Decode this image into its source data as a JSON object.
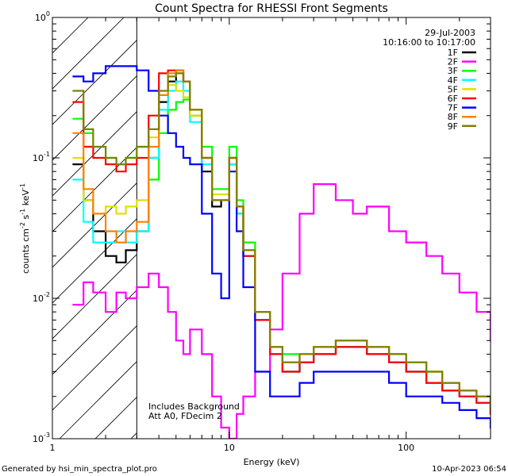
{
  "chart_data": {
    "type": "line",
    "title": "Count Spectra for RHESSI Front Segments",
    "xlabel": "Energy (keV)",
    "ylabel_parts": {
      "a": "counts cm",
      "b": "-2",
      "c": " s",
      "d": "-1",
      "e": " keV",
      "f": "-1"
    },
    "x_scale": "log",
    "y_scale": "log",
    "xlim": [
      1,
      300
    ],
    "ylim": [
      0.001,
      1
    ],
    "x_tick_labels": [
      {
        "v": 1,
        "label": "1"
      },
      {
        "v": 10,
        "label": "10"
      },
      {
        "v": 100,
        "label": "100"
      }
    ],
    "y_tick_labels": [
      {
        "v": 1,
        "base": "10",
        "exp": "0"
      },
      {
        "v": 0.1,
        "base": "10",
        "exp": "-1"
      },
      {
        "v": 0.01,
        "base": "10",
        "exp": "-2"
      },
      {
        "v": 0.001,
        "base": "10",
        "exp": "-3"
      }
    ],
    "hatched_region_xmax": 3,
    "info": {
      "date": "29-Jul-2003",
      "time_range": "10:16:00 to 10:17:00"
    },
    "annotations": [
      "Includes Background",
      "Att A0, FDecim 2"
    ],
    "footer_left": "Generated by hsi_min_spectra_plot.pro",
    "footer_right": "10-Apr-2023 06:54",
    "series": [
      {
        "name": "1F",
        "color": "#000000",
        "energy": [
          1.3,
          1.5,
          1.7,
          2.0,
          2.3,
          2.6,
          3.0,
          3.5,
          4.0,
          4.5,
          5.0,
          5.5,
          6.0,
          7.0,
          8.0,
          9.0,
          10.0,
          11.0,
          12.0,
          14.0,
          17.0,
          20.0,
          25.0,
          30.0,
          40.0,
          50.0,
          60.0,
          80.0,
          100.0,
          130.0,
          160.0,
          200.0,
          250.0,
          300.0
        ],
        "counts": [
          0.09,
          0.05,
          0.03,
          0.02,
          0.018,
          0.022,
          0.03,
          0.1,
          0.25,
          0.35,
          0.42,
          0.35,
          0.2,
          0.08,
          0.045,
          0.05,
          0.09,
          0.04,
          0.02,
          0.007,
          0.004,
          0.003,
          0.0035,
          0.004,
          0.0045,
          0.0045,
          0.004,
          0.0035,
          0.003,
          0.0025,
          0.0022,
          0.002,
          0.0018,
          0.0015
        ]
      },
      {
        "name": "2F",
        "color": "#ff00ff",
        "energy": [
          1.3,
          1.5,
          1.7,
          2.0,
          2.3,
          2.6,
          3.0,
          3.5,
          4.0,
          4.5,
          5.0,
          5.5,
          6.0,
          7.0,
          8.0,
          9.0,
          10.0,
          11.0,
          12.0,
          14.0,
          17.0,
          20.0,
          25.0,
          30.0,
          40.0,
          50.0,
          60.0,
          80.0,
          100.0,
          130.0,
          160.0,
          200.0,
          250.0,
          300.0
        ],
        "counts": [
          0.009,
          0.013,
          0.011,
          0.008,
          0.011,
          0.01,
          0.012,
          0.015,
          0.012,
          0.008,
          0.005,
          0.004,
          0.006,
          0.004,
          0.002,
          0.0012,
          0.001,
          0.0015,
          0.002,
          0.003,
          0.006,
          0.015,
          0.04,
          0.065,
          0.05,
          0.04,
          0.045,
          0.03,
          0.025,
          0.02,
          0.015,
          0.011,
          0.008,
          0.005
        ]
      },
      {
        "name": "3F",
        "color": "#00ff00",
        "energy": [
          1.3,
          1.5,
          1.7,
          2.0,
          2.3,
          2.6,
          3.0,
          3.5,
          4.0,
          4.5,
          5.0,
          5.5,
          6.0,
          7.0,
          8.0,
          9.0,
          10.0,
          11.0,
          12.0,
          14.0,
          17.0,
          20.0,
          25.0,
          30.0,
          40.0,
          50.0,
          60.0,
          80.0,
          100.0,
          130.0,
          160.0,
          200.0,
          250.0,
          300.0
        ],
        "counts": [
          0.19,
          0.15,
          0.12,
          0.1,
          0.09,
          0.1,
          0.12,
          0.07,
          0.15,
          0.22,
          0.25,
          0.26,
          0.2,
          0.12,
          0.06,
          0.06,
          0.12,
          0.05,
          0.025,
          0.008,
          0.0045,
          0.004,
          0.004,
          0.0045,
          0.005,
          0.005,
          0.0045,
          0.004,
          0.0035,
          0.003,
          0.0025,
          0.0022,
          0.002,
          0.0017
        ]
      },
      {
        "name": "4F",
        "color": "#00ffff",
        "energy": [
          1.3,
          1.5,
          1.7,
          2.0,
          2.3,
          2.6,
          3.0,
          3.5,
          4.0,
          4.5,
          5.0,
          5.5,
          6.0,
          7.0,
          8.0,
          9.0,
          10.0,
          11.0,
          12.0,
          14.0,
          17.0,
          20.0,
          25.0,
          30.0,
          40.0,
          50.0,
          60.0,
          80.0,
          100.0,
          130.0,
          160.0,
          200.0,
          250.0,
          300.0
        ],
        "counts": [
          0.07,
          0.035,
          0.025,
          0.025,
          0.03,
          0.025,
          0.03,
          0.1,
          0.22,
          0.3,
          0.35,
          0.3,
          0.18,
          0.09,
          0.05,
          0.05,
          0.09,
          0.04,
          0.02,
          0.007,
          0.004,
          0.003,
          0.0035,
          0.004,
          0.0045,
          0.0045,
          0.004,
          0.0035,
          0.003,
          0.0025,
          0.0022,
          0.002,
          0.0018,
          0.0015
        ]
      },
      {
        "name": "5F",
        "color": "#e0e000",
        "energy": [
          1.3,
          1.5,
          1.7,
          2.0,
          2.3,
          2.6,
          3.0,
          3.5,
          4.0,
          4.5,
          5.0,
          5.5,
          6.0,
          7.0,
          8.0,
          9.0,
          10.0,
          11.0,
          12.0,
          14.0,
          17.0,
          20.0,
          25.0,
          30.0,
          40.0,
          50.0,
          60.0,
          80.0,
          100.0,
          130.0,
          160.0,
          200.0,
          250.0,
          300.0
        ],
        "counts": [
          0.1,
          0.05,
          0.04,
          0.045,
          0.04,
          0.045,
          0.05,
          0.14,
          0.28,
          0.33,
          0.3,
          0.27,
          0.2,
          0.1,
          0.055,
          0.055,
          0.1,
          0.045,
          0.022,
          0.008,
          0.0045,
          0.0035,
          0.004,
          0.0045,
          0.005,
          0.005,
          0.0045,
          0.004,
          0.0035,
          0.003,
          0.0025,
          0.0022,
          0.002,
          0.0017
        ]
      },
      {
        "name": "6F",
        "color": "#ff0000",
        "energy": [
          1.3,
          1.5,
          1.7,
          2.0,
          2.3,
          2.6,
          3.0,
          3.5,
          4.0,
          4.5,
          5.0,
          5.5,
          6.0,
          7.0,
          8.0,
          9.0,
          10.0,
          11.0,
          12.0,
          14.0,
          17.0,
          20.0,
          25.0,
          30.0,
          40.0,
          50.0,
          60.0,
          80.0,
          100.0,
          130.0,
          160.0,
          200.0,
          250.0,
          300.0
        ],
        "counts": [
          0.25,
          0.12,
          0.1,
          0.09,
          0.08,
          0.09,
          0.1,
          0.2,
          0.4,
          0.42,
          0.4,
          0.35,
          0.22,
          0.1,
          0.05,
          0.05,
          0.1,
          0.045,
          0.02,
          0.007,
          0.004,
          0.003,
          0.0035,
          0.004,
          0.0045,
          0.0045,
          0.004,
          0.0035,
          0.003,
          0.0025,
          0.0022,
          0.002,
          0.0018,
          0.0015
        ]
      },
      {
        "name": "7F",
        "color": "#0000ff",
        "energy": [
          1.3,
          1.5,
          1.7,
          2.0,
          2.3,
          2.6,
          3.0,
          3.5,
          4.0,
          4.5,
          5.0,
          5.5,
          6.0,
          7.0,
          8.0,
          9.0,
          10.0,
          11.0,
          12.0,
          14.0,
          17.0,
          20.0,
          25.0,
          30.0,
          40.0,
          50.0,
          60.0,
          80.0,
          100.0,
          130.0,
          160.0,
          200.0,
          250.0,
          300.0
        ],
        "counts": [
          0.38,
          0.35,
          0.4,
          0.45,
          0.45,
          0.45,
          0.42,
          0.3,
          0.2,
          0.15,
          0.12,
          0.1,
          0.09,
          0.04,
          0.015,
          0.01,
          0.08,
          0.03,
          0.012,
          0.003,
          0.002,
          0.002,
          0.0025,
          0.003,
          0.003,
          0.003,
          0.003,
          0.0025,
          0.002,
          0.002,
          0.0018,
          0.0016,
          0.0014,
          0.0012
        ]
      },
      {
        "name": "8F",
        "color": "#ff8000",
        "energy": [
          1.3,
          1.5,
          1.7,
          2.0,
          2.3,
          2.6,
          3.0,
          3.5,
          4.0,
          4.5,
          5.0,
          5.5,
          6.0,
          7.0,
          8.0,
          9.0,
          10.0,
          11.0,
          12.0,
          14.0,
          17.0,
          20.0,
          25.0,
          30.0,
          40.0,
          50.0,
          60.0,
          80.0,
          100.0,
          130.0,
          160.0,
          200.0,
          250.0,
          300.0
        ],
        "counts": [
          0.15,
          0.06,
          0.04,
          0.03,
          0.025,
          0.03,
          0.035,
          0.12,
          0.28,
          0.4,
          0.42,
          0.35,
          0.22,
          0.1,
          0.05,
          0.05,
          0.1,
          0.045,
          0.022,
          0.008,
          0.0045,
          0.0035,
          0.004,
          0.0045,
          0.005,
          0.005,
          0.0045,
          0.004,
          0.0035,
          0.003,
          0.0025,
          0.0022,
          0.002,
          0.0017
        ]
      },
      {
        "name": "9F",
        "color": "#808000",
        "energy": [
          1.3,
          1.5,
          1.7,
          2.0,
          2.3,
          2.6,
          3.0,
          3.5,
          4.0,
          4.5,
          5.0,
          5.5,
          6.0,
          7.0,
          8.0,
          9.0,
          10.0,
          11.0,
          12.0,
          14.0,
          17.0,
          20.0,
          25.0,
          30.0,
          40.0,
          50.0,
          60.0,
          80.0,
          100.0,
          130.0,
          160.0,
          200.0,
          250.0,
          300.0
        ],
        "counts": [
          0.3,
          0.16,
          0.12,
          0.1,
          0.09,
          0.1,
          0.12,
          0.16,
          0.3,
          0.38,
          0.4,
          0.35,
          0.22,
          0.1,
          0.05,
          0.05,
          0.1,
          0.045,
          0.022,
          0.008,
          0.0045,
          0.0035,
          0.004,
          0.0045,
          0.005,
          0.005,
          0.0045,
          0.004,
          0.0035,
          0.003,
          0.0025,
          0.0022,
          0.002,
          0.0017
        ]
      }
    ]
  }
}
